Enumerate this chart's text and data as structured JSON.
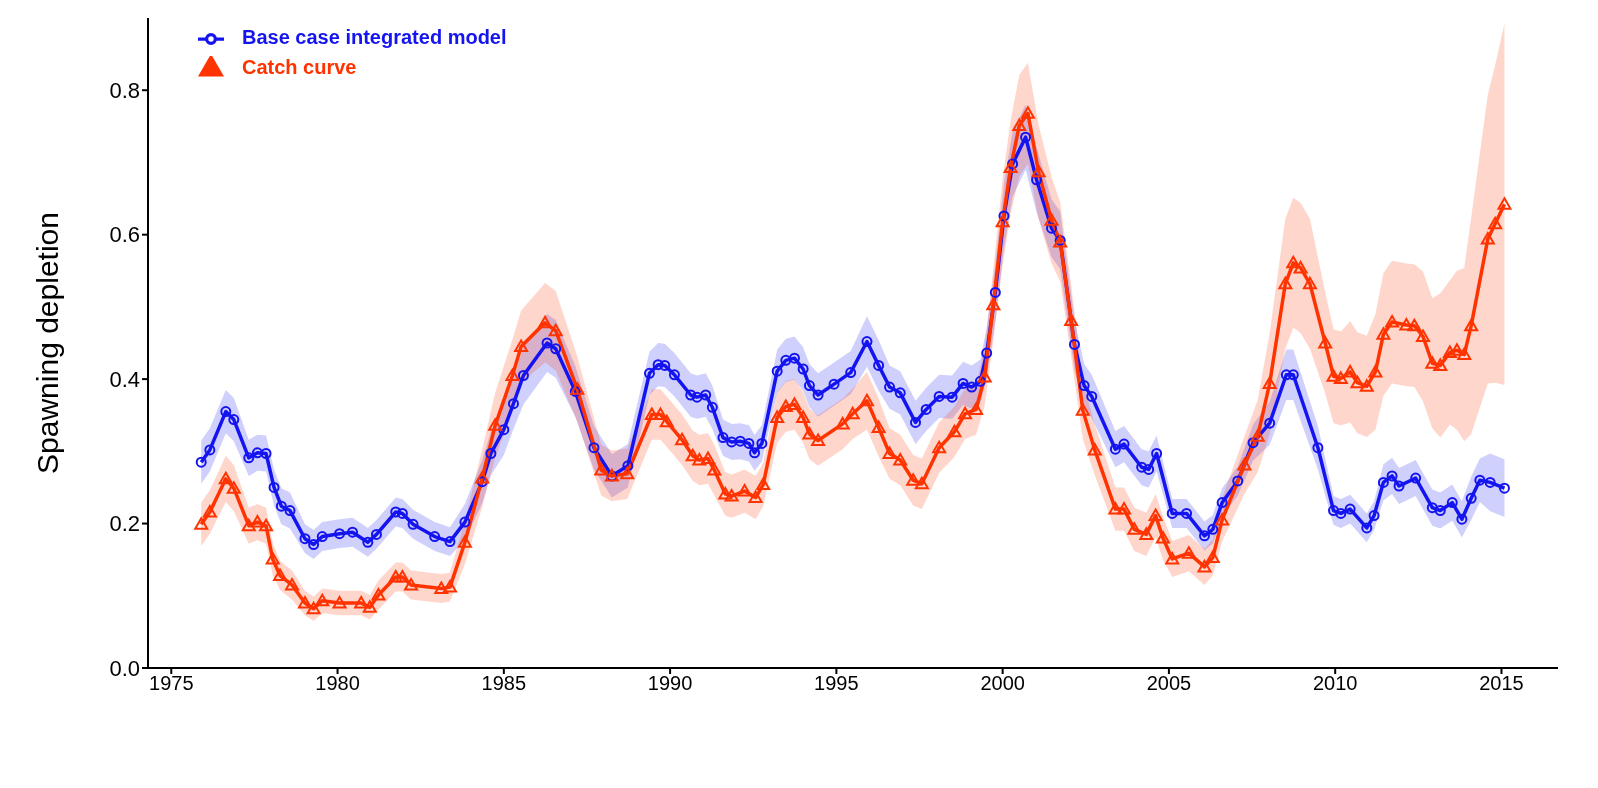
{
  "chart_data": {
    "type": "line",
    "ylabel": "Spawning depletion",
    "xlim": [
      1974.3,
      2016.7
    ],
    "xticks": [
      1975,
      1980,
      1985,
      1990,
      1995,
      2000,
      2005,
      2010,
      2015
    ],
    "ylim": [
      0,
      0.9
    ],
    "yticks": [
      {
        "value": 0,
        "label": "0.0"
      },
      {
        "value": 0.2,
        "label": "0.2"
      },
      {
        "value": 0.4,
        "label": "0.4"
      },
      {
        "value": 0.6,
        "label": "0.6"
      },
      {
        "value": 0.8,
        "label": "0.8"
      }
    ],
    "grid": false,
    "legend": "top left",
    "line_style": "solid",
    "series": [
      {
        "name": "Base case integrated model",
        "color": "#1414f0",
        "marker": "circle",
        "x": [
          1975.9,
          1976.16,
          1976.64,
          1976.88,
          1977.33,
          1977.59,
          1977.85,
          1978.09,
          1978.31,
          1978.57,
          1979.02,
          1979.28,
          1979.54,
          1980.06,
          1980.45,
          1980.91,
          1981.17,
          1981.75,
          1981.95,
          1982.27,
          1982.92,
          1983.38,
          1983.83,
          1984.35,
          1984.61,
          1985.0,
          1985.29,
          1985.59,
          1986.3,
          1986.56,
          1987.15,
          1987.71,
          1988.25,
          1988.73,
          1989.38,
          1989.64,
          1989.84,
          1990.13,
          1990.62,
          1990.81,
          1991.07,
          1991.27,
          1991.59,
          1991.85,
          1992.11,
          1992.37,
          1992.54,
          1992.76,
          1993.22,
          1993.48,
          1993.74,
          1994.0,
          1994.19,
          1994.45,
          1994.93,
          1995.43,
          1995.92,
          1996.27,
          1996.6,
          1996.92,
          1997.38,
          1997.7,
          1998.09,
          1998.48,
          1998.81,
          1999.07,
          1999.33,
          1999.52,
          1999.78,
          2000.04,
          2000.3,
          2000.69,
          2001.02,
          2001.47,
          2001.73,
          2002.16,
          2002.45,
          2002.68,
          2003.39,
          2003.65,
          2004.18,
          2004.39,
          2004.63,
          2005.1,
          2005.53,
          2006.07,
          2006.32,
          2006.6,
          2007.07,
          2007.53,
          2008.03,
          2008.53,
          2008.74,
          2009.48,
          2009.95,
          2010.17,
          2010.45,
          2010.95,
          2011.17,
          2011.45,
          2011.71,
          2011.92,
          2012.42,
          2012.92,
          2013.16,
          2013.52,
          2013.81,
          2014.09,
          2014.35,
          2014.66,
          2015.09
        ],
        "values": [
          0.285,
          0.302,
          0.355,
          0.344,
          0.291,
          0.298,
          0.297,
          0.25,
          0.224,
          0.218,
          0.179,
          0.171,
          0.182,
          0.186,
          0.188,
          0.174,
          0.185,
          0.216,
          0.214,
          0.199,
          0.182,
          0.175,
          0.202,
          0.258,
          0.297,
          0.33,
          0.366,
          0.405,
          0.45,
          0.442,
          0.383,
          0.305,
          0.266,
          0.28,
          0.408,
          0.42,
          0.419,
          0.406,
          0.378,
          0.375,
          0.378,
          0.361,
          0.319,
          0.313,
          0.314,
          0.311,
          0.298,
          0.311,
          0.411,
          0.426,
          0.429,
          0.414,
          0.391,
          0.378,
          0.393,
          0.409,
          0.452,
          0.419,
          0.389,
          0.381,
          0.34,
          0.358,
          0.376,
          0.375,
          0.394,
          0.389,
          0.397,
          0.436,
          0.52,
          0.626,
          0.698,
          0.735,
          0.676,
          0.609,
          0.592,
          0.448,
          0.391,
          0.376,
          0.303,
          0.31,
          0.278,
          0.275,
          0.297,
          0.214,
          0.214,
          0.183,
          0.192,
          0.229,
          0.259,
          0.312,
          0.339,
          0.406,
          0.406,
          0.305,
          0.218,
          0.214,
          0.22,
          0.194,
          0.211,
          0.257,
          0.266,
          0.252,
          0.263,
          0.222,
          0.218,
          0.229,
          0.206,
          0.235,
          0.26,
          0.257,
          0.249
        ],
        "lower": [
          0.255,
          0.272,
          0.325,
          0.314,
          0.266,
          0.273,
          0.272,
          0.225,
          0.199,
          0.193,
          0.159,
          0.151,
          0.162,
          0.166,
          0.168,
          0.154,
          0.165,
          0.196,
          0.194,
          0.179,
          0.162,
          0.155,
          0.177,
          0.228,
          0.267,
          0.295,
          0.331,
          0.365,
          0.41,
          0.402,
          0.348,
          0.275,
          0.236,
          0.25,
          0.378,
          0.39,
          0.389,
          0.376,
          0.348,
          0.345,
          0.348,
          0.331,
          0.294,
          0.288,
          0.289,
          0.286,
          0.273,
          0.286,
          0.381,
          0.396,
          0.399,
          0.384,
          0.361,
          0.348,
          0.363,
          0.379,
          0.417,
          0.384,
          0.359,
          0.351,
          0.31,
          0.328,
          0.346,
          0.345,
          0.364,
          0.359,
          0.367,
          0.401,
          0.48,
          0.581,
          0.653,
          0.69,
          0.631,
          0.569,
          0.552,
          0.413,
          0.361,
          0.346,
          0.278,
          0.285,
          0.253,
          0.25,
          0.272,
          0.194,
          0.194,
          0.163,
          0.172,
          0.209,
          0.239,
          0.287,
          0.309,
          0.371,
          0.371,
          0.275,
          0.198,
          0.194,
          0.2,
          0.174,
          0.191,
          0.232,
          0.241,
          0.227,
          0.238,
          0.197,
          0.193,
          0.204,
          0.181,
          0.205,
          0.23,
          0.217,
          0.209
        ],
        "upper": [
          0.315,
          0.332,
          0.385,
          0.374,
          0.316,
          0.323,
          0.322,
          0.275,
          0.249,
          0.243,
          0.199,
          0.191,
          0.202,
          0.206,
          0.208,
          0.194,
          0.205,
          0.236,
          0.234,
          0.219,
          0.202,
          0.195,
          0.227,
          0.288,
          0.327,
          0.365,
          0.401,
          0.445,
          0.49,
          0.482,
          0.418,
          0.335,
          0.296,
          0.31,
          0.438,
          0.45,
          0.449,
          0.436,
          0.408,
          0.405,
          0.408,
          0.391,
          0.344,
          0.338,
          0.339,
          0.336,
          0.323,
          0.336,
          0.441,
          0.456,
          0.459,
          0.444,
          0.421,
          0.408,
          0.423,
          0.439,
          0.487,
          0.454,
          0.419,
          0.411,
          0.37,
          0.388,
          0.406,
          0.405,
          0.424,
          0.419,
          0.427,
          0.471,
          0.56,
          0.671,
          0.743,
          0.78,
          0.721,
          0.649,
          0.632,
          0.483,
          0.421,
          0.406,
          0.328,
          0.335,
          0.303,
          0.3,
          0.322,
          0.234,
          0.234,
          0.203,
          0.212,
          0.249,
          0.279,
          0.337,
          0.369,
          0.441,
          0.441,
          0.335,
          0.238,
          0.234,
          0.24,
          0.214,
          0.231,
          0.282,
          0.291,
          0.277,
          0.288,
          0.247,
          0.243,
          0.254,
          0.231,
          0.265,
          0.29,
          0.297,
          0.289
        ]
      },
      {
        "name": "Catch curve",
        "color": "#ff3300",
        "marker": "triangle",
        "x": [
          1975.9,
          1976.16,
          1976.64,
          1976.88,
          1977.33,
          1977.59,
          1977.85,
          1978.05,
          1978.27,
          1978.63,
          1979.02,
          1979.28,
          1979.54,
          1980.06,
          1980.71,
          1980.97,
          1981.23,
          1981.75,
          1981.95,
          1982.21,
          1983.12,
          1983.38,
          1983.83,
          1984.35,
          1984.74,
          1985.26,
          1985.52,
          1986.24,
          1986.56,
          1987.21,
          1987.93,
          1988.25,
          1988.71,
          1989.45,
          1989.71,
          1989.9,
          1990.36,
          1990.68,
          1990.88,
          1991.14,
          1991.33,
          1991.66,
          1991.85,
          1992.24,
          1992.57,
          1992.8,
          1993.22,
          1993.48,
          1993.74,
          1994.0,
          1994.19,
          1994.45,
          1995.19,
          1995.49,
          1995.92,
          1996.27,
          1996.6,
          1996.92,
          1997.31,
          1997.57,
          1998.09,
          1998.55,
          1998.87,
          1999.2,
          1999.46,
          1999.72,
          2000.0,
          2000.24,
          2000.5,
          2000.76,
          2001.08,
          2001.47,
          2001.73,
          2002.06,
          2002.41,
          2002.77,
          2003.39,
          2003.65,
          2003.96,
          2004.32,
          2004.6,
          2004.82,
          2005.1,
          2005.6,
          2006.07,
          2006.32,
          2006.6,
          2007.27,
          2007.67,
          2008.03,
          2008.5,
          2008.74,
          2008.96,
          2009.24,
          2009.7,
          2009.95,
          2010.17,
          2010.45,
          2010.67,
          2010.95,
          2011.21,
          2011.45,
          2011.71,
          2012.14,
          2012.38,
          2012.64,
          2012.92,
          2013.16,
          2013.45,
          2013.66,
          2013.88,
          2014.09,
          2014.59,
          2014.81,
          2015.09
        ],
        "values": [
          0.199,
          0.216,
          0.262,
          0.249,
          0.197,
          0.202,
          0.197,
          0.151,
          0.128,
          0.115,
          0.09,
          0.082,
          0.093,
          0.09,
          0.09,
          0.084,
          0.101,
          0.126,
          0.126,
          0.115,
          0.11,
          0.112,
          0.174,
          0.263,
          0.336,
          0.405,
          0.445,
          0.478,
          0.467,
          0.386,
          0.274,
          0.266,
          0.269,
          0.351,
          0.351,
          0.341,
          0.316,
          0.294,
          0.288,
          0.29,
          0.274,
          0.241,
          0.238,
          0.245,
          0.236,
          0.254,
          0.347,
          0.362,
          0.365,
          0.347,
          0.324,
          0.315,
          0.338,
          0.352,
          0.37,
          0.333,
          0.297,
          0.288,
          0.26,
          0.255,
          0.305,
          0.327,
          0.352,
          0.358,
          0.403,
          0.503,
          0.618,
          0.693,
          0.751,
          0.768,
          0.687,
          0.62,
          0.59,
          0.481,
          0.357,
          0.302,
          0.22,
          0.22,
          0.192,
          0.185,
          0.211,
          0.18,
          0.151,
          0.159,
          0.14,
          0.153,
          0.205,
          0.281,
          0.321,
          0.394,
          0.532,
          0.561,
          0.554,
          0.532,
          0.45,
          0.404,
          0.401,
          0.41,
          0.395,
          0.39,
          0.41,
          0.462,
          0.479,
          0.475,
          0.474,
          0.459,
          0.422,
          0.419,
          0.437,
          0.44,
          0.434,
          0.474,
          0.594,
          0.615,
          0.642
        ],
        "lower": [
          0.169,
          0.186,
          0.23,
          0.217,
          0.172,
          0.177,
          0.172,
          0.129,
          0.108,
          0.095,
          0.073,
          0.065,
          0.076,
          0.073,
          0.073,
          0.067,
          0.081,
          0.106,
          0.106,
          0.095,
          0.09,
          0.092,
          0.144,
          0.223,
          0.291,
          0.355,
          0.395,
          0.423,
          0.412,
          0.341,
          0.239,
          0.231,
          0.234,
          0.316,
          0.316,
          0.306,
          0.281,
          0.259,
          0.253,
          0.255,
          0.239,
          0.211,
          0.208,
          0.215,
          0.206,
          0.224,
          0.312,
          0.327,
          0.33,
          0.312,
          0.289,
          0.28,
          0.303,
          0.317,
          0.33,
          0.293,
          0.262,
          0.253,
          0.225,
          0.22,
          0.27,
          0.292,
          0.317,
          0.323,
          0.363,
          0.453,
          0.558,
          0.628,
          0.681,
          0.698,
          0.622,
          0.56,
          0.535,
          0.431,
          0.317,
          0.267,
          0.19,
          0.19,
          0.162,
          0.155,
          0.181,
          0.15,
          0.126,
          0.134,
          0.115,
          0.128,
          0.175,
          0.241,
          0.271,
          0.324,
          0.442,
          0.471,
          0.464,
          0.442,
          0.38,
          0.339,
          0.336,
          0.34,
          0.325,
          0.32,
          0.33,
          0.377,
          0.394,
          0.39,
          0.389,
          0.369,
          0.332,
          0.319,
          0.337,
          0.33,
          0.314,
          0.324,
          0.394,
          0.395,
          0.392
        ],
        "upper": [
          0.229,
          0.246,
          0.294,
          0.281,
          0.222,
          0.227,
          0.222,
          0.173,
          0.148,
          0.135,
          0.107,
          0.099,
          0.11,
          0.107,
          0.107,
          0.101,
          0.121,
          0.146,
          0.146,
          0.135,
          0.13,
          0.132,
          0.204,
          0.303,
          0.381,
          0.455,
          0.495,
          0.533,
          0.522,
          0.431,
          0.309,
          0.301,
          0.304,
          0.386,
          0.386,
          0.376,
          0.351,
          0.329,
          0.323,
          0.325,
          0.309,
          0.271,
          0.268,
          0.275,
          0.266,
          0.284,
          0.382,
          0.397,
          0.4,
          0.382,
          0.359,
          0.35,
          0.373,
          0.387,
          0.41,
          0.373,
          0.332,
          0.323,
          0.295,
          0.29,
          0.34,
          0.362,
          0.387,
          0.393,
          0.443,
          0.553,
          0.678,
          0.758,
          0.821,
          0.838,
          0.752,
          0.68,
          0.645,
          0.531,
          0.397,
          0.337,
          0.25,
          0.25,
          0.222,
          0.215,
          0.241,
          0.21,
          0.176,
          0.184,
          0.165,
          0.178,
          0.235,
          0.321,
          0.371,
          0.464,
          0.622,
          0.651,
          0.644,
          0.622,
          0.52,
          0.469,
          0.466,
          0.48,
          0.465,
          0.46,
          0.49,
          0.547,
          0.564,
          0.56,
          0.559,
          0.549,
          0.512,
          0.519,
          0.537,
          0.55,
          0.554,
          0.624,
          0.794,
          0.835,
          0.892
        ]
      }
    ]
  }
}
